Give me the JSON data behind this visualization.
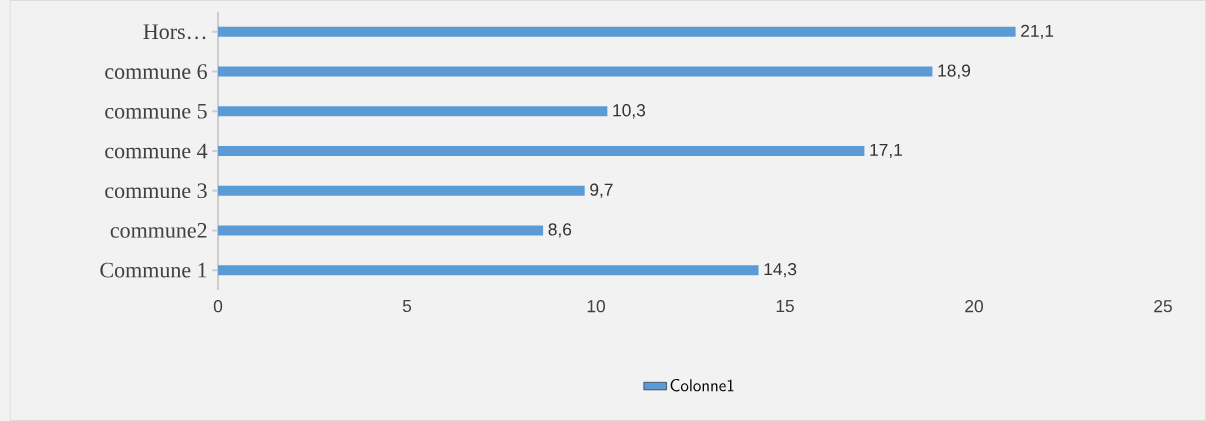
{
  "chart_data": {
    "type": "bar",
    "orientation": "horizontal",
    "categories": [
      "Hors…",
      "commune 6",
      "commune 5",
      "commune 4",
      "commune 3",
      "commune2",
      "Commune 1"
    ],
    "series": [
      {
        "name": "Colonne1",
        "color": "#5b9bd5",
        "values": [
          21.1,
          18.9,
          10.3,
          17.1,
          9.7,
          8.6,
          14.3
        ],
        "value_labels": [
          "21,1",
          "18,9",
          "10,3",
          "17,1",
          "9,7",
          "8,6",
          "14,3"
        ]
      }
    ],
    "xlim": [
      0,
      25
    ],
    "xticks": [
      0,
      5,
      10,
      15,
      20,
      25
    ],
    "legend": "bottom"
  }
}
